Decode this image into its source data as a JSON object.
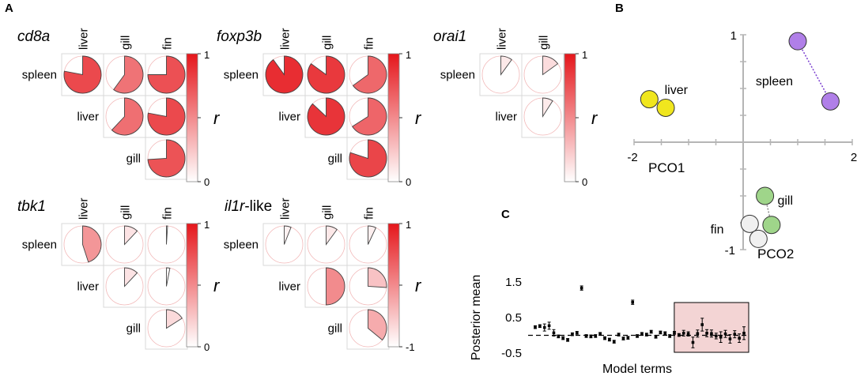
{
  "panel_labels": {
    "a": "A",
    "b": "B",
    "c": "C"
  },
  "matrices": [
    {
      "title": "cd8a",
      "cols": [
        "liver",
        "gill",
        "fin"
      ],
      "rows": [
        "spleen",
        "liver",
        "gill"
      ],
      "cells": [
        [
          0.78,
          0.6,
          0.75
        ],
        [
          null,
          0.62,
          0.78
        ],
        [
          null,
          null,
          0.74
        ]
      ],
      "scale": [
        0,
        1
      ]
    },
    {
      "title": "foxp3b",
      "cols": [
        "liver",
        "gill",
        "fin"
      ],
      "rows": [
        "spleen",
        "liver",
        "gill"
      ],
      "cells": [
        [
          0.9,
          0.85,
          0.65
        ],
        [
          null,
          0.87,
          0.66
        ],
        [
          null,
          null,
          0.8
        ]
      ],
      "scale": [
        0,
        1
      ]
    },
    {
      "title": "orai1",
      "cols": [
        "liver",
        "gill"
      ],
      "rows": [
        "spleen",
        "liver"
      ],
      "cells": [
        [
          0.1,
          0.15
        ],
        [
          null,
          0.09
        ]
      ],
      "scale": [
        0,
        1
      ]
    },
    {
      "title": "tbk1",
      "cols": [
        "liver",
        "gill",
        "fin"
      ],
      "rows": [
        "spleen",
        "liver",
        "gill"
      ],
      "cells": [
        [
          0.45,
          0.12,
          0.01
        ],
        [
          null,
          0.12,
          0.03
        ],
        [
          null,
          null,
          0.16
        ]
      ],
      "scale": [
        0,
        1
      ]
    },
    {
      "title_italic": "il1r",
      "title_suffix": "-like",
      "cols": [
        "liver",
        "gill",
        "fin"
      ],
      "rows": [
        "spleen",
        "liver",
        "gill"
      ],
      "cells": [
        [
          0.06,
          0.1,
          0.07
        ],
        [
          null,
          0.5,
          0.26
        ],
        [
          null,
          null,
          0.36
        ]
      ],
      "scale": [
        -1,
        1
      ]
    }
  ],
  "colorbar": {
    "symbol": "r",
    "colors": {
      "high": "#e5161b",
      "low": "#ffffff",
      "outline": "#d9d9d9",
      "circle": "#f2b8b8"
    }
  },
  "chart_data": [
    {
      "type": "scatter",
      "panel": "B",
      "xlabel": "PCO1",
      "ylabel": "PCO2",
      "xlim": [
        -2,
        2
      ],
      "ylim": [
        -1,
        1
      ],
      "xticks": [
        -2,
        2
      ],
      "yticks": [
        -1,
        1
      ],
      "tick_labels": {
        "x": [
          "-2",
          "2"
        ],
        "y": [
          "-1",
          "1"
        ]
      },
      "groups": [
        {
          "name": "liver",
          "color": "#f0e61e",
          "points": [
            [
              -1.72,
              0.4
            ],
            [
              -1.42,
              0.32
            ]
          ]
        },
        {
          "name": "spleen",
          "color": "#b07fe8",
          "points": [
            [
              1.0,
              0.94
            ],
            [
              1.6,
              0.38
            ]
          ]
        },
        {
          "name": "gill",
          "color": "#9fd58a",
          "points": [
            [
              0.4,
              -0.5
            ],
            [
              0.52,
              -0.77
            ]
          ]
        },
        {
          "name": "fin",
          "color": "#f0f0f0",
          "points": [
            [
              0.12,
              -0.76
            ],
            [
              0.28,
              -0.9
            ]
          ]
        }
      ]
    },
    {
      "type": "scatter",
      "panel": "C",
      "xlabel": "Model terms",
      "ylabel": "Posterior mean",
      "ylim": [
        -0.5,
        1.5
      ],
      "yticks": [
        -0.5,
        0.5,
        1.5
      ],
      "tick_labels": {
        "y": [
          "-0.5",
          "0.5",
          "1.5"
        ]
      },
      "reference_line": 0,
      "highlight_terms": [
        32,
        46
      ],
      "highlight_color": "#f3d4d4",
      "points": [
        {
          "x": 1,
          "y": 0.23,
          "lo": 0.19,
          "hi": 0.27
        },
        {
          "x": 2,
          "y": 0.26,
          "lo": 0.22,
          "hi": 0.3
        },
        {
          "x": 3,
          "y": 0.22,
          "lo": 0.12,
          "hi": 0.32
        },
        {
          "x": 4,
          "y": 0.27,
          "lo": 0.17,
          "hi": 0.37
        },
        {
          "x": 5,
          "y": 0.07,
          "lo": -0.02,
          "hi": 0.16
        },
        {
          "x": 6,
          "y": -0.03,
          "lo": -0.07,
          "hi": 0.01
        },
        {
          "x": 7,
          "y": -0.08,
          "lo": -0.12,
          "hi": -0.04
        },
        {
          "x": 8,
          "y": -0.13,
          "lo": -0.17,
          "hi": -0.09
        },
        {
          "x": 9,
          "y": 0.03,
          "lo": -0.01,
          "hi": 0.07
        },
        {
          "x": 10,
          "y": 0.07,
          "lo": 0.03,
          "hi": 0.11
        },
        {
          "x": 11,
          "y": 1.33,
          "lo": 1.27,
          "hi": 1.39
        },
        {
          "x": 12,
          "y": -0.02,
          "lo": -0.06,
          "hi": 0.02
        },
        {
          "x": 13,
          "y": -0.03,
          "lo": -0.07,
          "hi": 0.01
        },
        {
          "x": 14,
          "y": -0.02,
          "lo": -0.06,
          "hi": 0.02
        },
        {
          "x": 15,
          "y": 0.04,
          "lo": 0.0,
          "hi": 0.08
        },
        {
          "x": 16,
          "y": -0.08,
          "lo": -0.12,
          "hi": -0.04
        },
        {
          "x": 17,
          "y": -0.12,
          "lo": -0.16,
          "hi": -0.08
        },
        {
          "x": 18,
          "y": -0.18,
          "lo": -0.22,
          "hi": -0.14
        },
        {
          "x": 19,
          "y": 0.02,
          "lo": -0.02,
          "hi": 0.06
        },
        {
          "x": 20,
          "y": -0.09,
          "lo": -0.13,
          "hi": -0.05
        },
        {
          "x": 21,
          "y": -0.07,
          "lo": -0.11,
          "hi": -0.03
        },
        {
          "x": 22,
          "y": 0.93,
          "lo": 0.87,
          "hi": 0.99
        },
        {
          "x": 23,
          "y": -0.02,
          "lo": -0.06,
          "hi": 0.02
        },
        {
          "x": 24,
          "y": 0.04,
          "lo": 0.0,
          "hi": 0.08
        },
        {
          "x": 25,
          "y": 0.02,
          "lo": -0.02,
          "hi": 0.06
        },
        {
          "x": 26,
          "y": 0.1,
          "lo": 0.06,
          "hi": 0.14
        },
        {
          "x": 27,
          "y": -0.04,
          "lo": -0.08,
          "hi": 0.0
        },
        {
          "x": 28,
          "y": 0.08,
          "lo": 0.04,
          "hi": 0.12
        },
        {
          "x": 29,
          "y": 0.06,
          "lo": 0.02,
          "hi": 0.1
        },
        {
          "x": 30,
          "y": -0.02,
          "lo": -0.06,
          "hi": 0.02
        },
        {
          "x": 31,
          "y": 0.07,
          "lo": 0.03,
          "hi": 0.11
        },
        {
          "x": 32,
          "y": 0.01,
          "lo": -0.03,
          "hi": 0.05
        },
        {
          "x": 33,
          "y": 0.06,
          "lo": -0.02,
          "hi": 0.14
        },
        {
          "x": 34,
          "y": 0.04,
          "lo": -0.02,
          "hi": 0.1
        },
        {
          "x": 35,
          "y": -0.2,
          "lo": -0.35,
          "hi": -0.05
        },
        {
          "x": 36,
          "y": 0.05,
          "lo": -0.05,
          "hi": 0.15
        },
        {
          "x": 37,
          "y": 0.3,
          "lo": 0.12,
          "hi": 0.48
        },
        {
          "x": 38,
          "y": 0.06,
          "lo": -0.04,
          "hi": 0.16
        },
        {
          "x": 39,
          "y": 0.05,
          "lo": -0.05,
          "hi": 0.15
        },
        {
          "x": 40,
          "y": -0.02,
          "lo": -0.1,
          "hi": 0.06
        },
        {
          "x": 41,
          "y": -0.05,
          "lo": -0.2,
          "hi": 0.1
        },
        {
          "x": 42,
          "y": 0.04,
          "lo": -0.06,
          "hi": 0.14
        },
        {
          "x": 43,
          "y": -0.1,
          "lo": -0.22,
          "hi": 0.02
        },
        {
          "x": 44,
          "y": 0.03,
          "lo": -0.07,
          "hi": 0.13
        },
        {
          "x": 45,
          "y": -0.08,
          "lo": -0.2,
          "hi": 0.04
        },
        {
          "x": 46,
          "y": 0.06,
          "lo": -0.12,
          "hi": 0.24
        }
      ]
    }
  ]
}
